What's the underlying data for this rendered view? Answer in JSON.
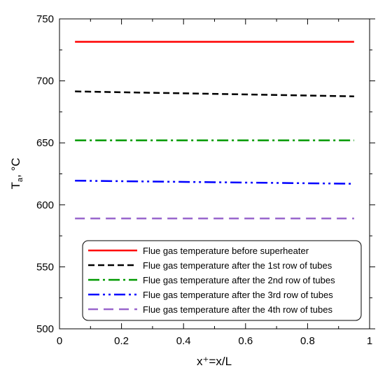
{
  "chart_data": {
    "type": "line",
    "xlabel": "x⁺=x/L",
    "ylabel_main": "T",
    "ylabel_sub": "a",
    "ylabel_unit": ", °C",
    "xlim": [
      0,
      1
    ],
    "ylim": [
      500,
      750
    ],
    "x_ticks": [
      "0",
      "0.2",
      "0.4",
      "0.6",
      "0.8",
      "1"
    ],
    "x_tick_values": [
      0,
      0.2,
      0.4,
      0.6,
      0.8,
      1
    ],
    "y_ticks": [
      "500",
      "550",
      "600",
      "650",
      "700",
      "750"
    ],
    "y_tick_values": [
      500,
      550,
      600,
      650,
      700,
      750
    ],
    "grid": false,
    "legend_position": "bottom-right",
    "series": [
      {
        "name": "Flue gas temperature before superheater",
        "color": "#ff0000",
        "style": "solid",
        "x": [
          0.05,
          0.95
        ],
        "y": [
          731.5,
          731.5
        ]
      },
      {
        "name": "Flue gas temperature after the 1st row of tubes",
        "color": "#000000",
        "style": "dash",
        "x": [
          0.05,
          0.95
        ],
        "y": [
          691.5,
          687.5
        ]
      },
      {
        "name": "Flue gas temperature after the 2nd row of tubes",
        "color": "#009900",
        "style": "dashdot",
        "x": [
          0.05,
          0.95
        ],
        "y": [
          652,
          652
        ]
      },
      {
        "name": "Flue gas temperature after the 3rd row of tubes",
        "color": "#0000ff",
        "style": "dashdotdot",
        "x": [
          0.05,
          0.95
        ],
        "y": [
          619.5,
          617
        ]
      },
      {
        "name": "Flue gas temperature after the 4th row of tubes",
        "color": "#9966cc",
        "style": "longdash",
        "x": [
          0.05,
          0.95
        ],
        "y": [
          589,
          589
        ]
      }
    ]
  }
}
